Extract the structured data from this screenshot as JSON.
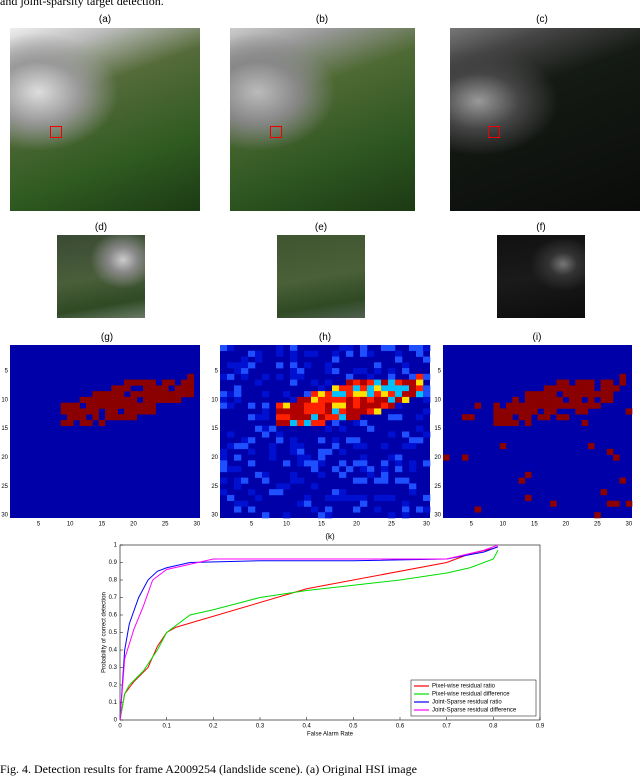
{
  "header": {
    "text": "and joint-sparsity target detection."
  },
  "panels": {
    "labels": [
      "(a)",
      "(b)",
      "(c)",
      "(d)",
      "(e)",
      "(f)",
      "(g)",
      "(h)",
      "(i)"
    ]
  },
  "heatmaps": {
    "ticks": [
      5,
      10,
      15,
      20,
      25,
      30
    ]
  },
  "chart_data": {
    "type": "line",
    "title": "(k)",
    "x_label": "False Alarm Rate",
    "y_label": "Probability of correct detection",
    "xlim": [
      0,
      0.9
    ],
    "ylim": [
      0,
      1
    ],
    "xticks": [
      0,
      0.1,
      0.2,
      0.3,
      0.4,
      0.5,
      0.6,
      0.7,
      0.8,
      0.9
    ],
    "yticks": [
      0,
      0.1,
      0.2,
      0.3,
      0.4,
      0.5,
      0.6,
      0.7,
      0.8,
      0.9,
      1
    ],
    "legend": "lower right",
    "series": [
      {
        "name": "Pixel-wise residual ratio",
        "color": "#ff0000",
        "x": [
          0,
          0.01,
          0.03,
          0.06,
          0.08,
          0.1,
          0.12,
          0.4,
          0.7,
          0.75,
          0.8,
          0.81
        ],
        "values": [
          0,
          0.15,
          0.22,
          0.3,
          0.42,
          0.5,
          0.53,
          0.75,
          0.9,
          0.95,
          0.98,
          0.99
        ]
      },
      {
        "name": "Pixel-wise residual difference",
        "color": "#00dd00",
        "x": [
          0,
          0.01,
          0.02,
          0.05,
          0.08,
          0.1,
          0.15,
          0.2,
          0.3,
          0.4,
          0.5,
          0.6,
          0.7,
          0.75,
          0.8,
          0.81
        ],
        "values": [
          0,
          0.15,
          0.2,
          0.28,
          0.4,
          0.5,
          0.6,
          0.63,
          0.7,
          0.74,
          0.77,
          0.8,
          0.84,
          0.87,
          0.92,
          0.97
        ]
      },
      {
        "name": "Joint-Sparse residual ratio",
        "color": "#0000ff",
        "x": [
          0,
          0.01,
          0.02,
          0.04,
          0.06,
          0.08,
          0.1,
          0.15,
          0.3,
          0.5,
          0.7,
          0.78,
          0.81
        ],
        "values": [
          0,
          0.4,
          0.55,
          0.7,
          0.8,
          0.85,
          0.87,
          0.9,
          0.91,
          0.91,
          0.92,
          0.96,
          0.99
        ]
      },
      {
        "name": "Joint-Sparse residual difference",
        "color": "#ff00ff",
        "x": [
          0,
          0.01,
          0.03,
          0.05,
          0.07,
          0.1,
          0.15,
          0.2,
          0.5,
          0.7,
          0.78,
          0.81
        ],
        "values": [
          0,
          0.35,
          0.52,
          0.65,
          0.8,
          0.86,
          0.89,
          0.92,
          0.92,
          0.92,
          0.97,
          1
        ]
      }
    ]
  },
  "caption": {
    "text": "Fig. 4.   Detection results for frame A2009254 (landslide scene).  (a) Original HSI image"
  }
}
